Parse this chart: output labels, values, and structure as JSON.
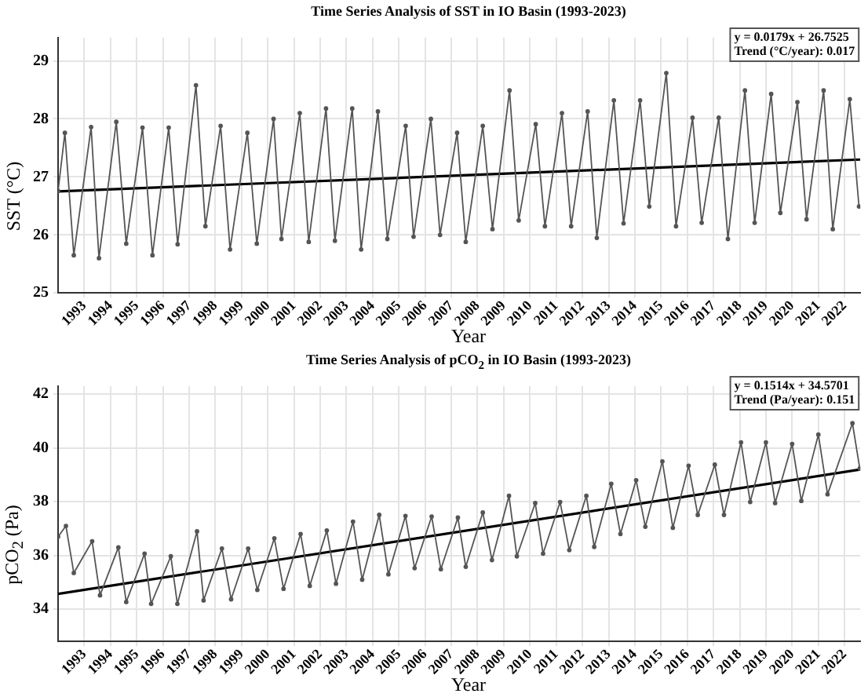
{
  "chart_data": [
    {
      "type": "line",
      "title": "Time Series Analysis of SST in IO Basin (1993-2023)",
      "xlabel": "Year",
      "ylabel": "SST (°C)",
      "xlim": [
        1992,
        2022.6
      ],
      "xticks": [
        1993,
        1994,
        1995,
        1996,
        1997,
        1998,
        1999,
        2000,
        2001,
        2002,
        2003,
        2004,
        2005,
        2006,
        2007,
        2008,
        2009,
        2010,
        2011,
        2012,
        2013,
        2014,
        2015,
        2016,
        2017,
        2018,
        2019,
        2020,
        2021,
        2022
      ],
      "ylim": [
        25,
        29.4
      ],
      "yticks": [
        25,
        26,
        27,
        28,
        29
      ],
      "grid": true,
      "annotations": [
        "y = 0.0179x + 26.7525",
        "Trend (°C/year): 0.017"
      ],
      "series": [
        {
          "color": "#555555",
          "marker": "circle",
          "x": [
            1992.0,
            1992.26,
            1992.6,
            1993.26,
            1993.56,
            1994.22,
            1994.6,
            1995.22,
            1995.6,
            1996.22,
            1996.56,
            1997.26,
            1997.62,
            1998.2,
            1998.56,
            1999.22,
            1999.58,
            2000.22,
            2000.52,
            2001.22,
            2001.56,
            2002.22,
            2002.56,
            2003.22,
            2003.56,
            2004.2,
            2004.56,
            2005.26,
            2005.56,
            2006.22,
            2006.57,
            2007.22,
            2007.55,
            2008.2,
            2008.57,
            2009.22,
            2009.57,
            2010.22,
            2010.57,
            2011.22,
            2011.57,
            2012.2,
            2012.55,
            2013.2,
            2013.57,
            2014.2,
            2014.55,
            2015.2,
            2015.57,
            2016.2,
            2016.55,
            2017.2,
            2017.55,
            2018.2,
            2018.57,
            2019.2,
            2019.55,
            2020.2,
            2020.55,
            2021.2,
            2021.55,
            2022.2,
            2022.55
          ],
          "values": [
            26.76,
            27.76,
            25.65,
            27.86,
            25.6,
            27.95,
            25.85,
            27.85,
            25.65,
            27.85,
            25.84,
            28.58,
            26.15,
            27.88,
            25.75,
            27.76,
            25.85,
            28.0,
            25.93,
            28.1,
            25.88,
            28.18,
            25.9,
            28.18,
            25.75,
            28.13,
            25.93,
            27.88,
            25.97,
            28.0,
            26.0,
            27.76,
            25.88,
            27.88,
            26.1,
            28.49,
            26.25,
            27.91,
            26.15,
            28.1,
            26.15,
            28.13,
            25.95,
            28.32,
            26.2,
            28.32,
            26.49,
            28.79,
            26.15,
            28.02,
            26.21,
            28.02,
            25.93,
            28.49,
            26.21,
            28.43,
            26.38,
            28.29,
            26.27,
            28.49,
            26.1,
            28.34,
            26.49
          ]
        },
        {
          "color": "#000000",
          "marker": "none",
          "x": [
            1992,
            2022.6
          ],
          "values": [
            26.75,
            27.3
          ]
        }
      ]
    },
    {
      "type": "line",
      "title": "Time Series Analysis of pCO$_{2}$ in IO Basin (1993-2023)",
      "xlabel": "Year",
      "ylabel": "pCO$_{2}$ (Pa)",
      "xlim": [
        1992,
        2022.6
      ],
      "xticks": [
        1993,
        1994,
        1995,
        1996,
        1997,
        1998,
        1999,
        2000,
        2001,
        2002,
        2003,
        2004,
        2005,
        2006,
        2007,
        2008,
        2009,
        2010,
        2011,
        2012,
        2013,
        2014,
        2015,
        2016,
        2017,
        2018,
        2019,
        2020,
        2021,
        2022
      ],
      "ylim": [
        32.8,
        42.3
      ],
      "yticks": [
        34,
        36,
        38,
        40,
        42
      ],
      "grid": true,
      "annotations": [
        "y = 0.1514x + 34.5701",
        "Trend (Pa/year): 0.151"
      ],
      "series": [
        {
          "color": "#555555",
          "marker": "circle",
          "x": [
            1992.0,
            1992.3,
            1992.6,
            1993.3,
            1993.6,
            1994.3,
            1994.6,
            1995.3,
            1995.55,
            1996.3,
            1996.55,
            1997.3,
            1997.55,
            1998.25,
            1998.6,
            1999.25,
            1999.6,
            2000.25,
            2000.6,
            2001.25,
            2001.6,
            2002.25,
            2002.6,
            2003.25,
            2003.6,
            2004.25,
            2004.6,
            2005.25,
            2005.6,
            2006.25,
            2006.6,
            2007.25,
            2007.55,
            2008.2,
            2008.55,
            2009.2,
            2009.5,
            2010.2,
            2010.5,
            2011.15,
            2011.5,
            2012.15,
            2012.45,
            2013.1,
            2013.45,
            2014.05,
            2014.4,
            2015.05,
            2015.45,
            2016.05,
            2016.4,
            2017.05,
            2017.4,
            2018.05,
            2018.4,
            2019.0,
            2019.35,
            2020.0,
            2020.35,
            2021.0,
            2021.35,
            2022.3,
            2022.58
          ],
          "values": [
            36.7,
            37.1,
            35.35,
            36.53,
            34.52,
            36.3,
            34.27,
            36.07,
            34.2,
            35.97,
            34.2,
            36.9,
            34.33,
            36.26,
            34.37,
            36.26,
            34.72,
            36.64,
            34.76,
            36.8,
            34.87,
            36.93,
            34.95,
            37.26,
            35.1,
            37.51,
            35.3,
            37.47,
            35.53,
            37.45,
            35.49,
            37.41,
            35.58,
            37.6,
            35.83,
            38.22,
            35.97,
            37.95,
            36.07,
            37.99,
            36.2,
            38.22,
            36.32,
            38.67,
            36.8,
            38.8,
            37.07,
            39.5,
            37.03,
            39.34,
            37.51,
            39.38,
            37.51,
            40.21,
            37.99,
            40.21,
            37.95,
            40.15,
            38.03,
            40.5,
            38.28,
            40.92,
            39.24
          ]
        },
        {
          "color": "#000000",
          "marker": "none",
          "x": [
            1992,
            2022.6
          ],
          "values": [
            34.57,
            39.2
          ]
        }
      ]
    }
  ]
}
